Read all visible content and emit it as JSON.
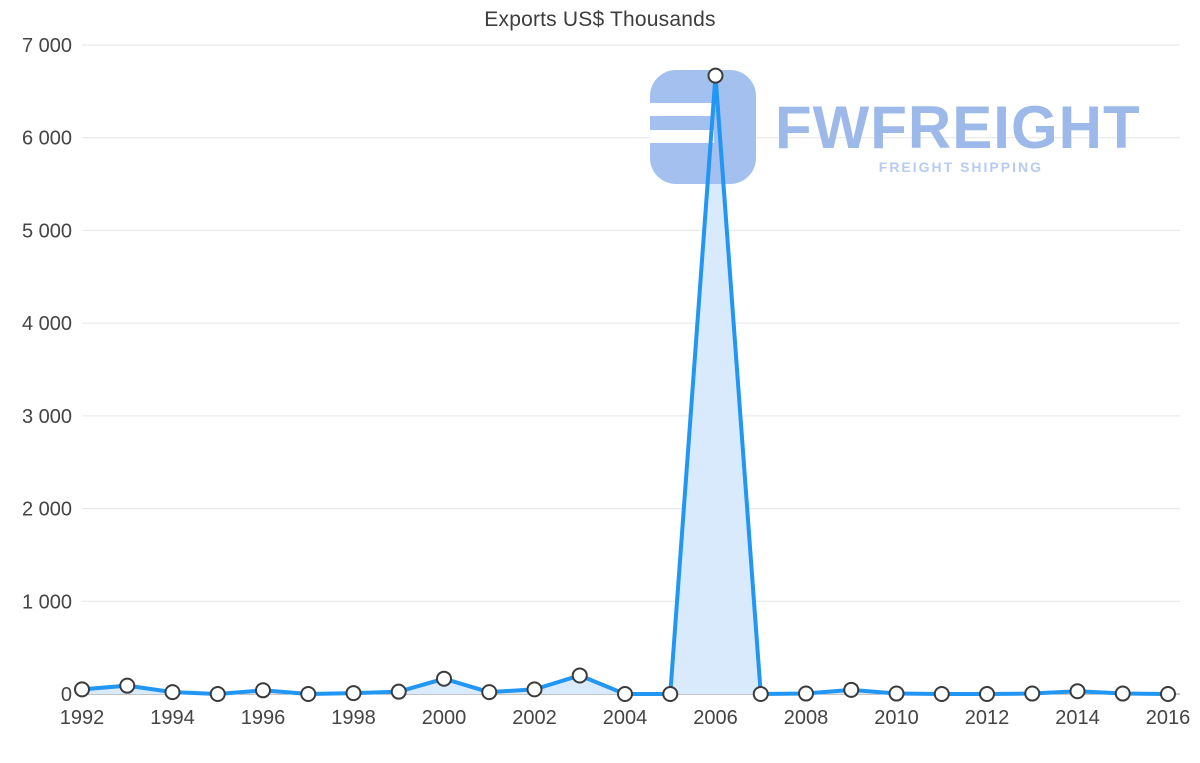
{
  "title": "Exports US$ Thousands",
  "watermark": {
    "brand": "FWFREIGHT",
    "tagline": "FREIGHT SHIPPING",
    "logo_color": "#a3c0ee",
    "brand_color": "#9db9e9",
    "tagline_color": "#b7cbf1"
  },
  "chart_data": {
    "type": "area",
    "title": "Exports US$ Thousands",
    "x": [
      1992,
      1993,
      1994,
      1995,
      1996,
      1997,
      1998,
      1999,
      2000,
      2001,
      2002,
      2003,
      2004,
      2005,
      2006,
      2007,
      2008,
      2009,
      2010,
      2011,
      2012,
      2013,
      2014,
      2015,
      2016
    ],
    "series": [
      {
        "name": "Exports US$ Thousands",
        "values": [
          50,
          90,
          20,
          0,
          40,
          0,
          10,
          25,
          165,
          20,
          50,
          200,
          0,
          0,
          6670,
          0,
          5,
          45,
          5,
          0,
          0,
          5,
          30,
          5,
          0
        ]
      }
    ],
    "xlabel": "",
    "ylabel": "",
    "ylim": [
      0,
      7000
    ],
    "ytick_values": [
      0,
      1000,
      2000,
      3000,
      4000,
      5000,
      6000,
      7000
    ],
    "ytick_labels": [
      "0",
      "1 000",
      "2 000",
      "3 000",
      "4 000",
      "5 000",
      "6 000",
      "7 000"
    ],
    "xtick_values": [
      1992,
      1994,
      1996,
      1998,
      2000,
      2002,
      2004,
      2006,
      2008,
      2010,
      2012,
      2014,
      2016
    ],
    "grid": true,
    "legend": "none",
    "colors": {
      "line": "#2196f3",
      "fill": "#d9eafc",
      "marker_fill": "#ffffff",
      "marker_stroke": "#3b3b3b",
      "grid": "#e6e6e6",
      "baseline": "#8a8a8a",
      "axis_text": "#444444",
      "title_text": "#3d3d3d"
    }
  }
}
